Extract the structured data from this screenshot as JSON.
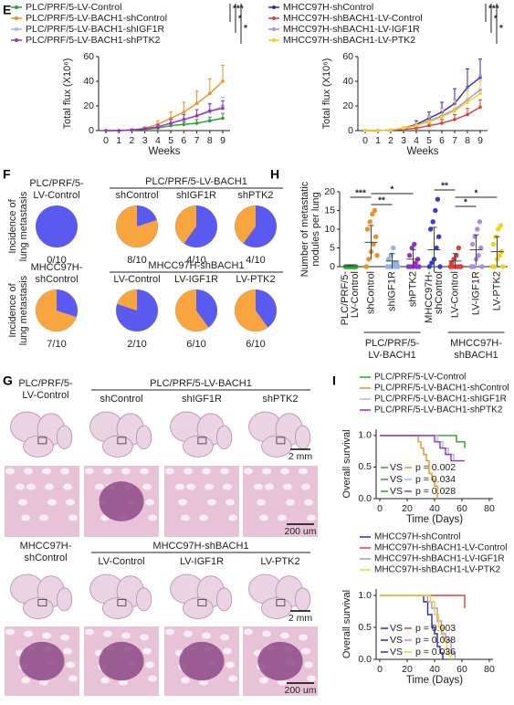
{
  "panel_labels": [
    "E",
    "F",
    "G",
    "H",
    "I"
  ],
  "chart_data": [
    {
      "type": "line",
      "x": [
        0,
        1,
        2,
        3,
        4,
        5,
        6,
        7,
        8,
        9
      ],
      "xlim": [
        0,
        9
      ],
      "xticks": [
        0,
        1,
        2,
        3,
        4,
        5,
        6,
        7,
        8,
        9
      ],
      "ylim": [
        0,
        60
      ],
      "yticks": [
        0,
        20,
        40,
        60
      ],
      "ylabel": "Total flux (X10⁶)",
      "xlabel": "Weeks",
      "significance": [
        "***",
        "*",
        "*"
      ],
      "series": [
        {
          "name": "PLC/PRF/5-LV-Control",
          "color": "#2ca02c",
          "values": [
            0,
            0,
            0.5,
            1,
            2,
            4,
            5,
            6,
            8,
            10
          ],
          "errors": [
            0,
            0,
            0.3,
            0.5,
            1,
            1.5,
            2,
            3,
            3,
            4
          ]
        },
        {
          "name": "PLC/PRF/5-LV-BACH1-shControl",
          "color": "#f0901e",
          "values": [
            0,
            0,
            0.5,
            2,
            5,
            10,
            15,
            22,
            30,
            40
          ],
          "errors": [
            0,
            0,
            0.5,
            1,
            3,
            5,
            8,
            10,
            12,
            13
          ]
        },
        {
          "name": "PLC/PRF/5-LV-BACH1-shIGF1R",
          "color": "#a9b8ee",
          "values": [
            0,
            0,
            0.5,
            1.5,
            3,
            6,
            9,
            12,
            15,
            20
          ],
          "errors": [
            0,
            0,
            0.3,
            0.8,
            2,
            3,
            4,
            5,
            6,
            7
          ]
        },
        {
          "name": "PLC/PRF/5-LV-BACH1-shPTK2",
          "color": "#9b30c8",
          "values": [
            0,
            0,
            0.5,
            1.5,
            3,
            6,
            9,
            12,
            16,
            18
          ],
          "errors": [
            0,
            0,
            0.3,
            0.8,
            2,
            3,
            4,
            5,
            6,
            6
          ]
        }
      ]
    },
    {
      "type": "line",
      "x": [
        0,
        1,
        2,
        3,
        4,
        5,
        6,
        7,
        8,
        9
      ],
      "xlim": [
        0,
        9
      ],
      "xticks": [
        0,
        1,
        2,
        3,
        4,
        5,
        6,
        7,
        8,
        9
      ],
      "ylim": [
        0,
        60
      ],
      "yticks": [
        0,
        20,
        40,
        60
      ],
      "ylabel": "Total flux (X10⁶)",
      "xlabel": "Weeks",
      "significance": [
        "***",
        "*",
        "*"
      ],
      "series": [
        {
          "name": "MHCC97H-shControl",
          "color": "#2b2bb8",
          "values": [
            0,
            0,
            0.5,
            2,
            5,
            10,
            15,
            22,
            35,
            43
          ],
          "errors": [
            0,
            0,
            0.5,
            1,
            3,
            5,
            8,
            12,
            15,
            15
          ]
        },
        {
          "name": "MHCC97H-shBACH1-LV-Control",
          "color": "#e53b3b",
          "values": [
            0,
            0,
            0.5,
            1,
            2,
            4,
            6,
            9,
            13,
            19
          ],
          "errors": [
            0,
            0,
            0.3,
            0.5,
            1,
            2,
            3,
            4,
            5,
            6
          ]
        },
        {
          "name": "MHCC97H-shBACH1-LV-IGF1R",
          "color": "#a98ee8",
          "values": [
            0,
            0,
            0.5,
            2,
            4,
            8,
            12,
            17,
            25,
            33
          ],
          "errors": [
            0,
            0,
            0.5,
            1,
            2,
            4,
            6,
            8,
            10,
            12
          ]
        },
        {
          "name": "MHCC97H-shBACH1-LV-PTK2",
          "color": "#f2d21c",
          "values": [
            0,
            0,
            0.5,
            2,
            4,
            7,
            11,
            16,
            23,
            30
          ],
          "errors": [
            0,
            0,
            0.5,
            1,
            2,
            4,
            5,
            7,
            9,
            10
          ]
        }
      ]
    },
    {
      "type": "pie",
      "title": "PLC/PRF/5-LV-BACH1",
      "ylabel": [
        "Incidence of",
        "lung metastasis"
      ],
      "categories": [
        [
          "PLC/PRF/5-",
          "LV-Control"
        ],
        [
          "shControl"
        ],
        [
          "shIGF1R"
        ],
        [
          "shPTK2"
        ]
      ],
      "values": [
        0,
        8,
        4,
        4
      ],
      "value_labels": [
        "0/10",
        "8/10",
        "4/10",
        "4/10"
      ],
      "total": 10,
      "colors": [
        "#f8a540",
        "#5a5af0"
      ]
    },
    {
      "type": "pie",
      "title": "MHCC97H-shBACH1",
      "ylabel": [
        "Incidence of",
        "lung metastasis"
      ],
      "categories": [
        [
          "MHCC97H-",
          "shControl"
        ],
        [
          "LV-Control"
        ],
        [
          "LV-IGF1R"
        ],
        [
          "LV-PTK2"
        ]
      ],
      "values": [
        7,
        2,
        6,
        6
      ],
      "value_labels": [
        "7/10",
        "2/10",
        "6/10",
        "6/10"
      ],
      "total": 10,
      "colors": [
        "#f8a540",
        "#5a5af0"
      ]
    },
    {
      "type": "dot",
      "ylabel": [
        "Number of metastatic",
        "nodules per lung"
      ],
      "ylim": [
        0,
        20
      ],
      "yticks": [
        0,
        5,
        10,
        15,
        20
      ],
      "categories": [
        [
          "PLC/PRF/5-",
          "LV-Control"
        ],
        [
          "shControl"
        ],
        [
          "shIGF1R"
        ],
        [
          "shPTK2"
        ],
        [
          "MHCC97H-",
          "shControl"
        ],
        [
          "LV-Control"
        ],
        [
          "LV-IGF1R"
        ],
        [
          "LV-PTK2"
        ]
      ],
      "group_labels": [
        [
          "PLC/PRF/5-",
          "LV-BACH1"
        ],
        [
          "MHCC97H-",
          "shBACH1"
        ]
      ],
      "colors": [
        "#2ca02c",
        "#f0901e",
        "#8fb4e8",
        "#9b30c8",
        "#3a3adc",
        "#e53b3b",
        "#a98ee8",
        "#f2d21c"
      ],
      "values": [
        0.2,
        6.5,
        1.5,
        2,
        4.5,
        1.5,
        4.5,
        4
      ],
      "errors": [
        0.2,
        4.5,
        2,
        2.5,
        6,
        2,
        4,
        4
      ],
      "points": [
        [
          0,
          0,
          0,
          0,
          0,
          0,
          0,
          0,
          0,
          0
        ],
        [
          0,
          2,
          4,
          6,
          8,
          10,
          12,
          14,
          15,
          3
        ],
        [
          0,
          0,
          0,
          1,
          1,
          2,
          3,
          5,
          0,
          0
        ],
        [
          0,
          0,
          0,
          1,
          2,
          3,
          5,
          6,
          0,
          0
        ],
        [
          0,
          1,
          2,
          5,
          8,
          10,
          12,
          15,
          18,
          0
        ],
        [
          0,
          0,
          0,
          0,
          0,
          1,
          2,
          3,
          5,
          0
        ],
        [
          0,
          0,
          2,
          3,
          5,
          6,
          8,
          10,
          12,
          0
        ],
        [
          0,
          0,
          2,
          3,
          4,
          6,
          8,
          10,
          11,
          0
        ]
      ],
      "significance": [
        "***",
        "**",
        "*",
        "**",
        "*",
        "*"
      ]
    },
    {
      "type": "line",
      "step": true,
      "xlim": [
        0,
        80
      ],
      "xticks": [
        0,
        20,
        40,
        60,
        80
      ],
      "ylim": [
        0,
        1.1
      ],
      "yticks": [
        {
          "value": 0,
          "label": "0.0"
        },
        {
          "value": 0.5,
          "label": "0.5"
        },
        {
          "value": 1,
          "label": "1.0"
        }
      ],
      "ylabel": "Overall survival",
      "xlabel": "Time (Days)",
      "annotations": [
        {
          "vs": "VS",
          "p": "p = 0.002"
        },
        {
          "vs": "VS",
          "p": "p = 0.034"
        },
        {
          "vs": "VS",
          "p": "p = 0.028"
        }
      ],
      "series": [
        {
          "name": "PLC/PRF/5-LV-Control",
          "color": "#2ca02c",
          "x": [
            0,
            50,
            56,
            62
          ],
          "values": [
            1,
            1,
            0.9,
            0.8
          ]
        },
        {
          "name": "PLC/PRF/5-LV-BACH1-shControl",
          "color": "#f0901e",
          "x": [
            0,
            28,
            30,
            32,
            34,
            36,
            38,
            40,
            42
          ],
          "values": [
            1,
            0.9,
            0.8,
            0.7,
            0.6,
            0.4,
            0.3,
            0.2,
            0
          ]
        },
        {
          "name": "PLC/PRF/5-LV-BACH1-shIGF1R",
          "color": "#a9b8ee",
          "x": [
            0,
            42,
            46,
            50,
            54,
            60
          ],
          "values": [
            1,
            0.9,
            0.8,
            0.7,
            0.6,
            0.6
          ]
        },
        {
          "name": "PLC/PRF/5-LV-BACH1-shPTK2",
          "color": "#9b30c8",
          "x": [
            0,
            40,
            44,
            48,
            52,
            62
          ],
          "values": [
            1,
            0.9,
            0.8,
            0.7,
            0.6,
            0.6
          ]
        }
      ]
    },
    {
      "type": "line",
      "step": true,
      "xlim": [
        0,
        80
      ],
      "xticks": [
        0,
        20,
        40,
        60,
        80
      ],
      "ylim": [
        0,
        1.1
      ],
      "yticks": [
        {
          "value": 0,
          "label": "0.0"
        },
        {
          "value": 0.5,
          "label": "0.5"
        },
        {
          "value": 1,
          "label": "1.0"
        }
      ],
      "ylabel": "Overall survival",
      "xlabel": "Time (Days)",
      "annotations": [
        {
          "vs": "VS",
          "p": "p = 0.003"
        },
        {
          "vs": "VS",
          "p": "p = 0.038"
        },
        {
          "vs": "VS",
          "p": "p = 0.036"
        }
      ],
      "series": [
        {
          "name": "MHCC97H-shControl",
          "color": "#2b2bb8",
          "x": [
            0,
            32,
            35,
            38,
            40,
            42,
            44,
            46
          ],
          "values": [
            1,
            0.9,
            0.7,
            0.5,
            0.4,
            0.2,
            0.1,
            0
          ]
        },
        {
          "name": "MHCC97H-shBACH1-LV-Control",
          "color": "#e53b3b",
          "x": [
            0,
            60,
            62
          ],
          "values": [
            1,
            1,
            0.8
          ]
        },
        {
          "name": "MHCC97H-shBACH1-LV-IGF1R",
          "color": "#a98ee8",
          "x": [
            0,
            35,
            38,
            42,
            45,
            48,
            52,
            55
          ],
          "values": [
            1,
            0.9,
            0.8,
            0.6,
            0.4,
            0.3,
            0.1,
            0
          ]
        },
        {
          "name": "MHCC97H-shBACH1-LV-PTK2",
          "color": "#f2d21c",
          "x": [
            0,
            37,
            40,
            43,
            46,
            49,
            52
          ],
          "values": [
            1,
            0.9,
            0.7,
            0.5,
            0.3,
            0.1,
            0
          ]
        }
      ]
    }
  ],
  "histology": {
    "rows": [
      {
        "control": [
          "PLC/PRF/5-",
          "LV-Control"
        ],
        "group": "PLC/PRF/5-LV-BACH1",
        "columns": [
          "shControl",
          "shIGF1R",
          "shPTK2"
        ],
        "scale_whole": "2 mm",
        "scale_micro": "200 um"
      },
      {
        "control": [
          "MHCC97H-",
          "shControl"
        ],
        "group": "MHCC97H-shBACH1",
        "columns": [
          "LV-Control",
          "LV-IGF1R",
          "LV-PTK2"
        ],
        "scale_whole": "2 mm",
        "scale_micro": "200 um"
      }
    ]
  }
}
